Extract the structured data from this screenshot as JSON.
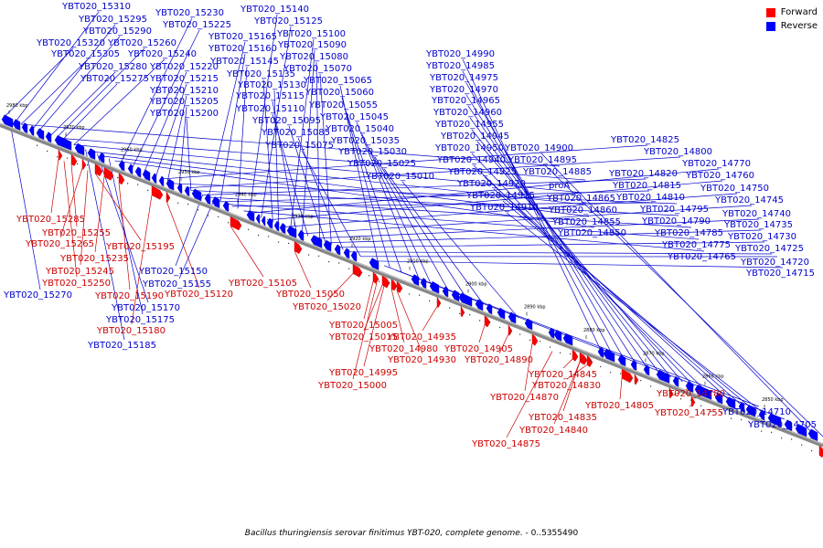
{
  "legend": {
    "forward": "Forward",
    "reverse": "Reverse",
    "forward_color": "#ff0000",
    "reverse_color": "#0000ff"
  },
  "caption": {
    "organism": "Bacillus thuringiensis serovar finitimus YBT-020, complete genome.",
    "range": " - 0..5355490"
  },
  "ticks": [
    "2980 kbp",
    "2970 kbp",
    "2960 kbp",
    "2950 kbp",
    "2940 kbp",
    "2930 kbp",
    "2920 kbp",
    "2910 kbp",
    "2900 kbp",
    "2890 kbp",
    "2880 kbp",
    "2870 kbp",
    "2860 kbp",
    "2850 kbp"
  ],
  "reverse_labels": [
    "YBT020_15310",
    "YBT020_15295",
    "YBT020_15290",
    "YBT020_15320",
    "YBT020_15260",
    "YBT020_15305",
    "YBT020_15240",
    "YBT020_15280",
    "YBT020_15275",
    "YBT020_15230",
    "YBT020_15225",
    "YBT020_15165",
    "YBT020_15160",
    "YBT020_15145",
    "YBT020_15220",
    "YBT020_15215",
    "YBT020_15210",
    "YBT020_15205",
    "YBT020_15200",
    "YBT020_15140",
    "YBT020_15125",
    "YBT020_15100",
    "YBT020_15090",
    "YBT020_15080",
    "YBT020_15070",
    "YBT020_15135",
    "YBT020_15130",
    "YBT020_15115",
    "YBT020_15110",
    "YBT020_15095",
    "YBT020_15085",
    "YBT020_15075",
    "YBT020_15065",
    "YBT020_15060",
    "YBT020_15055",
    "YBT020_15045",
    "YBT020_15040",
    "YBT020_15035",
    "YBT020_15030",
    "YBT020_15025",
    "YBT020_15010",
    "YBT020_14990",
    "YBT020_14985",
    "YBT020_14975",
    "YBT020_14970",
    "YBT020_14965",
    "YBT020_14960",
    "YBT020_14955",
    "YBT020_14945",
    "YBT020_14950",
    "YBT020_14940",
    "YBT020_14925",
    "YBT020_14920",
    "YBT020_14915",
    "YBT020_14910",
    "YBT020_14900",
    "YBT020_14895",
    "YBT020_14885",
    "proA",
    "YBT020_14865",
    "YBT020_14860",
    "YBT020_14855",
    "YBT020_14850",
    "YBT020_14825",
    "YBT020_14800",
    "YBT020_14820",
    "YBT020_14815",
    "YBT020_14810",
    "YBT020_14770",
    "YBT020_14760",
    "YBT020_14750",
    "YBT020_14795",
    "YBT020_14790",
    "YBT020_14785",
    "YBT020_14775",
    "YBT020_14765",
    "YBT020_14745",
    "YBT020_14740",
    "YBT020_14735",
    "YBT020_14730",
    "YBT020_14725",
    "YBT020_14720",
    "YBT020_14715",
    "YBT020_15150",
    "YBT020_15155",
    "YBT020_15170",
    "YBT020_15175",
    "YBT020_15185",
    "YBT020_15270",
    "YBT020_14710",
    "YBT020_14705"
  ],
  "forward_labels": [
    "YBT020_15285",
    "YBT020_15255",
    "YBT020_15265",
    "YBT020_15195",
    "YBT020_15235",
    "YBT020_15245",
    "YBT020_15250",
    "YBT020_15190",
    "YBT020_15180",
    "YBT020_15120",
    "YBT020_15105",
    "YBT020_15050",
    "YBT020_15020",
    "YBT020_15005",
    "YBT020_15015",
    "YBT020_14935",
    "YBT020_14980",
    "YBT020_14930",
    "YBT020_14995",
    "YBT020_15000",
    "YBT020_14905",
    "YBT020_14890",
    "YBT020_14845",
    "YBT020_14830",
    "YBT020_14870",
    "YBT020_14835",
    "YBT020_14840",
    "YBT020_14875",
    "YBT020_14805",
    "YBT020_14780",
    "YBT020_14755"
  ]
}
